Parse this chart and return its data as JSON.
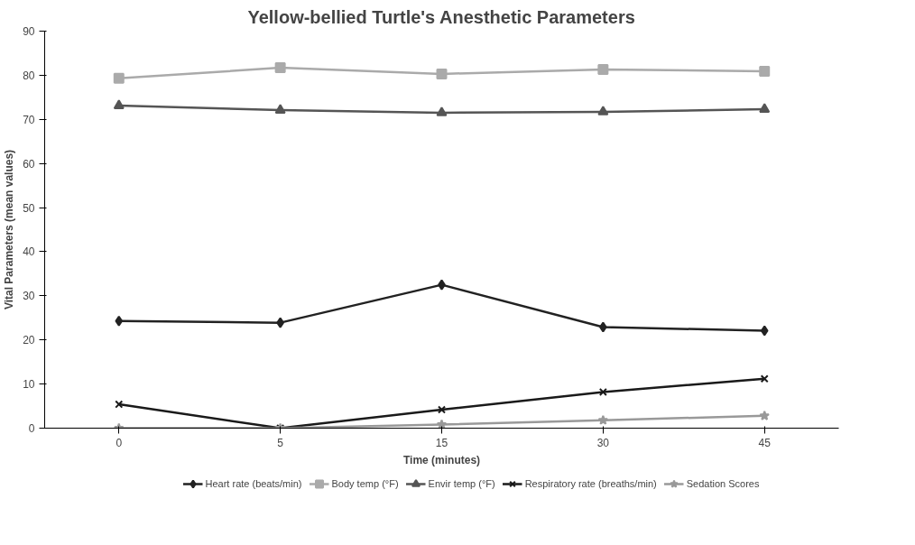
{
  "chart_data": {
    "type": "line",
    "title": "Yellow-bellied Turtle's Anesthetic Parameters",
    "xlabel": "Time (minutes)",
    "ylabel": "Vital Parameters (mean values)",
    "categories": [
      "0",
      "5",
      "15",
      "30",
      "45"
    ],
    "ylim": [
      0,
      90
    ],
    "yticks": [
      0,
      10,
      20,
      30,
      40,
      50,
      60,
      70,
      80,
      90
    ],
    "grid": false,
    "legend": "bottom",
    "line_style": "solid",
    "series": [
      {
        "name": "Heart rate (beats/min)",
        "color": "#222222",
        "marker": "diamond",
        "values": [
          24.3,
          23.9,
          32.5,
          22.9,
          22.1
        ]
      },
      {
        "name": "Body temp (°F)",
        "color": "#aaaaaa",
        "marker": "square",
        "values": [
          79.3,
          81.7,
          80.3,
          81.3,
          80.9
        ]
      },
      {
        "name": "Envir temp (°F)",
        "color": "#555555",
        "marker": "triangle",
        "values": [
          73.1,
          72.1,
          71.5,
          71.7,
          72.3
        ]
      },
      {
        "name": "Respiratory rate (breaths/min)",
        "color": "#1a1a1a",
        "marker": "cross",
        "values": [
          5.4,
          0,
          4.2,
          8.2,
          11.2
        ]
      },
      {
        "name": "Sedation Scores",
        "color": "#999999",
        "marker": "star",
        "values": [
          0,
          0,
          0.8,
          1.8,
          2.8
        ]
      }
    ]
  }
}
